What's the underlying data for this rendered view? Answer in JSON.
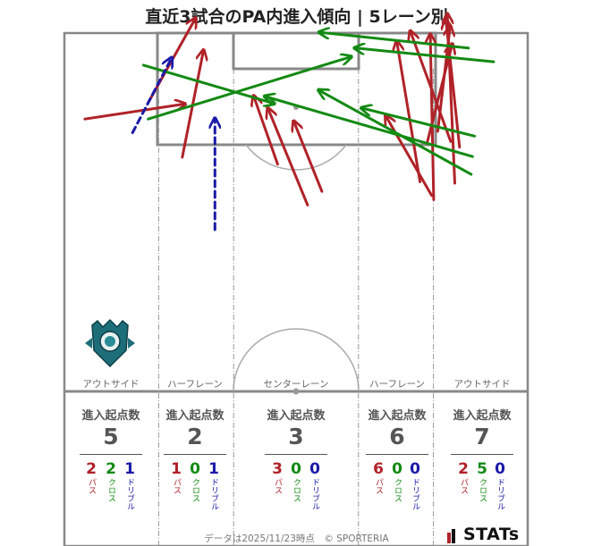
{
  "title": "直近3試合のPA内進入傾向 | 5レーン別",
  "footer": "データは2025/11/23時点　© SPORTERIA",
  "brand": "STATs",
  "colors": {
    "pass": "#b02228",
    "cross": "#138a13",
    "dribble": "#1a1aa8"
  },
  "crest_icon": "team-crest-icon",
  "chart_data": {
    "type": "arrow-map",
    "pitch_extent": {
      "x": [
        0,
        68
      ],
      "y": [
        0,
        52.5
      ]
    },
    "lane_boundaries": [
      13.84,
      24.84,
      43.16,
      54.16
    ],
    "lane_bands": [
      [
        0,
        13.84
      ],
      [
        13.84,
        24.84
      ],
      [
        24.84,
        43.16
      ],
      [
        43.16,
        54.16
      ],
      [
        54.16,
        68
      ]
    ],
    "lanes": [
      {
        "name": "アウトサイド",
        "count_label": "進入起点数",
        "total": "5",
        "pass": "2",
        "cross": "2",
        "dribble": "1"
      },
      {
        "name": "ハーフレーン",
        "count_label": "進入起点数",
        "total": "2",
        "pass": "1",
        "cross": "0",
        "dribble": "1"
      },
      {
        "name": "センターレーン",
        "count_label": "進入起点数",
        "total": "3",
        "pass": "3",
        "cross": "0",
        "dribble": "0"
      },
      {
        "name": "ハーフレーン",
        "count_label": "進入起点数",
        "total": "6",
        "pass": "6",
        "cross": "0",
        "dribble": "0"
      },
      {
        "name": "アウトサイド",
        "count_label": "進入起点数",
        "total": "7",
        "pass": "2",
        "cross": "5",
        "dribble": "0"
      }
    ],
    "legend_labels": {
      "pass": "パス",
      "cross": "クロス",
      "dribble": "ドリブル"
    },
    "arrows": [
      {
        "kind": "pass",
        "from": [
          3.0,
          39.9
        ],
        "to": [
          17.6,
          42.1
        ]
      },
      {
        "kind": "pass",
        "from": [
          12.3,
          42.3
        ],
        "to": [
          19.2,
          54.6
        ]
      },
      {
        "kind": "pass",
        "from": [
          17.3,
          34.3
        ],
        "to": [
          20.4,
          49.9
        ]
      },
      {
        "kind": "pass",
        "from": [
          31.3,
          33.3
        ],
        "to": [
          27.8,
          43.2
        ]
      },
      {
        "kind": "pass",
        "from": [
          35.7,
          27.3
        ],
        "to": [
          29.9,
          41.4
        ]
      },
      {
        "kind": "pass",
        "from": [
          37.8,
          29.3
        ],
        "to": [
          33.7,
          39.5
        ]
      },
      {
        "kind": "pass",
        "from": [
          52.2,
          30.7
        ],
        "to": [
          48.8,
          51.2
        ]
      },
      {
        "kind": "pass",
        "from": [
          53.9,
          28.7
        ],
        "to": [
          47.2,
          40.3
        ]
      },
      {
        "kind": "pass",
        "from": [
          54.2,
          28.1
        ],
        "to": [
          53.7,
          52.2
        ]
      },
      {
        "kind": "pass",
        "from": [
          56.7,
          36.6
        ],
        "to": [
          50.8,
          52.7
        ]
      },
      {
        "kind": "pass",
        "from": [
          57.3,
          30.5
        ],
        "to": [
          56.2,
          55.2
        ]
      },
      {
        "kind": "pass",
        "from": [
          58.0,
          35.8
        ],
        "to": [
          56.0,
          54.4
        ]
      },
      {
        "kind": "pass",
        "from": [
          54.8,
          38.1
        ],
        "to": [
          56.6,
          53.4
        ]
      },
      {
        "kind": "pass",
        "from": [
          53.2,
          36.3
        ],
        "to": [
          56.9,
          50.8
        ]
      },
      {
        "kind": "cross",
        "from": [
          11.6,
          47.8
        ],
        "to": [
          30.7,
          42.2
        ]
      },
      {
        "kind": "cross",
        "from": [
          12.3,
          39.9
        ],
        "to": [
          42.0,
          49.0
        ]
      },
      {
        "kind": "cross",
        "from": [
          63.0,
          48.3
        ],
        "to": [
          42.7,
          50.3
        ]
      },
      {
        "kind": "cross",
        "from": [
          59.3,
          50.3
        ],
        "to": [
          37.5,
          52.6
        ]
      },
      {
        "kind": "cross",
        "from": [
          60.2,
          37.4
        ],
        "to": [
          43.7,
          41.5
        ]
      },
      {
        "kind": "cross",
        "from": [
          59.9,
          34.4
        ],
        "to": [
          29.5,
          43.2
        ]
      },
      {
        "kind": "cross",
        "from": [
          59.7,
          31.8
        ],
        "to": [
          37.4,
          44.1
        ]
      },
      {
        "kind": "dribble",
        "from": [
          10.0,
          37.9
        ],
        "to": [
          15.7,
          48.8
        ]
      },
      {
        "kind": "dribble",
        "from": [
          22.1,
          23.7
        ],
        "to": [
          22.1,
          39.9
        ]
      }
    ]
  }
}
